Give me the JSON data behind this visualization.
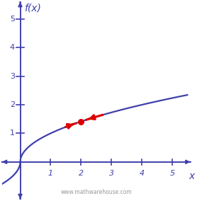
{
  "title": "f(x)",
  "xlabel": "x",
  "background_color": "#ffffff",
  "axis_color": "#4040aa",
  "curve_color": "#4040aa",
  "arrow_color": "#dd0000",
  "dot_color": "#dd0000",
  "dot_x": 2.0,
  "xlim": [
    -0.6,
    5.6
  ],
  "ylim": [
    -1.3,
    5.6
  ],
  "xticks": [
    1,
    2,
    3,
    4,
    5
  ],
  "yticks": [
    1,
    2,
    3,
    4,
    5
  ],
  "watermark": "www.mathwarehouse.com",
  "dot_size": 30,
  "curve_lw": 1.6,
  "axis_lw": 1.4,
  "tick_fontsize": 8,
  "label_fontsize": 10
}
